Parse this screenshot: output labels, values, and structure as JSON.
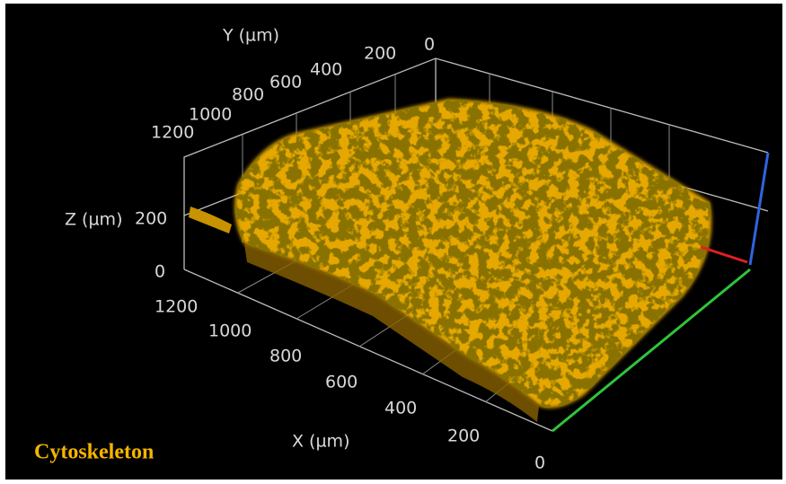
{
  "caption": "Cytoskeleton",
  "axes": {
    "x": {
      "label": "X (µm)",
      "ticks": [
        "1200",
        "1000",
        "800",
        "600",
        "400",
        "200",
        "0"
      ]
    },
    "y": {
      "label": "Y (µm)",
      "ticks": [
        "1200",
        "1000",
        "800",
        "600",
        "400",
        "200",
        "0"
      ]
    },
    "z": {
      "label": "Z (µm)",
      "ticks": [
        "200",
        "0"
      ]
    }
  }
}
